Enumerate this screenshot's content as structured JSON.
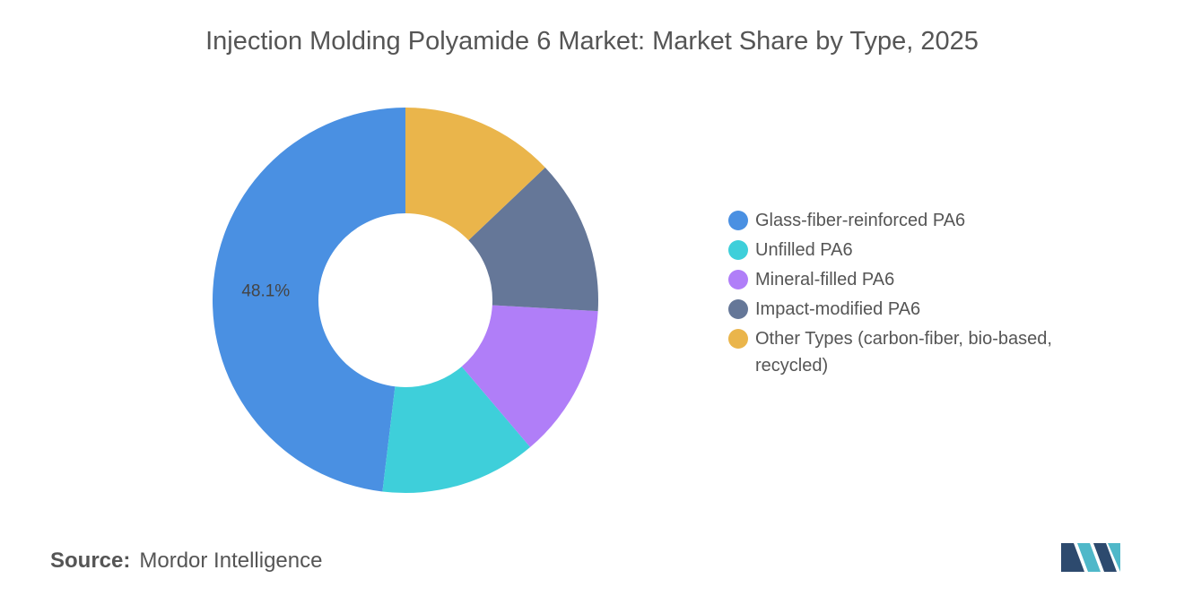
{
  "chart_data": {
    "type": "donut",
    "title": "Injection Molding Polyamide 6 Market: Market Share by Type, 2025",
    "categories": [
      "Glass-fiber-reinforced PA6",
      "Unfilled PA6",
      "Mineral-filled PA6",
      "Impact-modified PA6",
      "Other Types (carbon-fiber, bio-based, recycled)"
    ],
    "values": [
      48.1,
      13.1,
      12.9,
      13.0,
      12.9
    ],
    "value_labels": [
      "48.1%",
      null,
      null,
      null,
      null
    ],
    "colors": [
      "#4a90e2",
      "#3ecfda",
      "#b07ef8",
      "#657798",
      "#eab54b"
    ]
  },
  "source": {
    "label": "Source:",
    "name": "Mordor Intelligence"
  }
}
